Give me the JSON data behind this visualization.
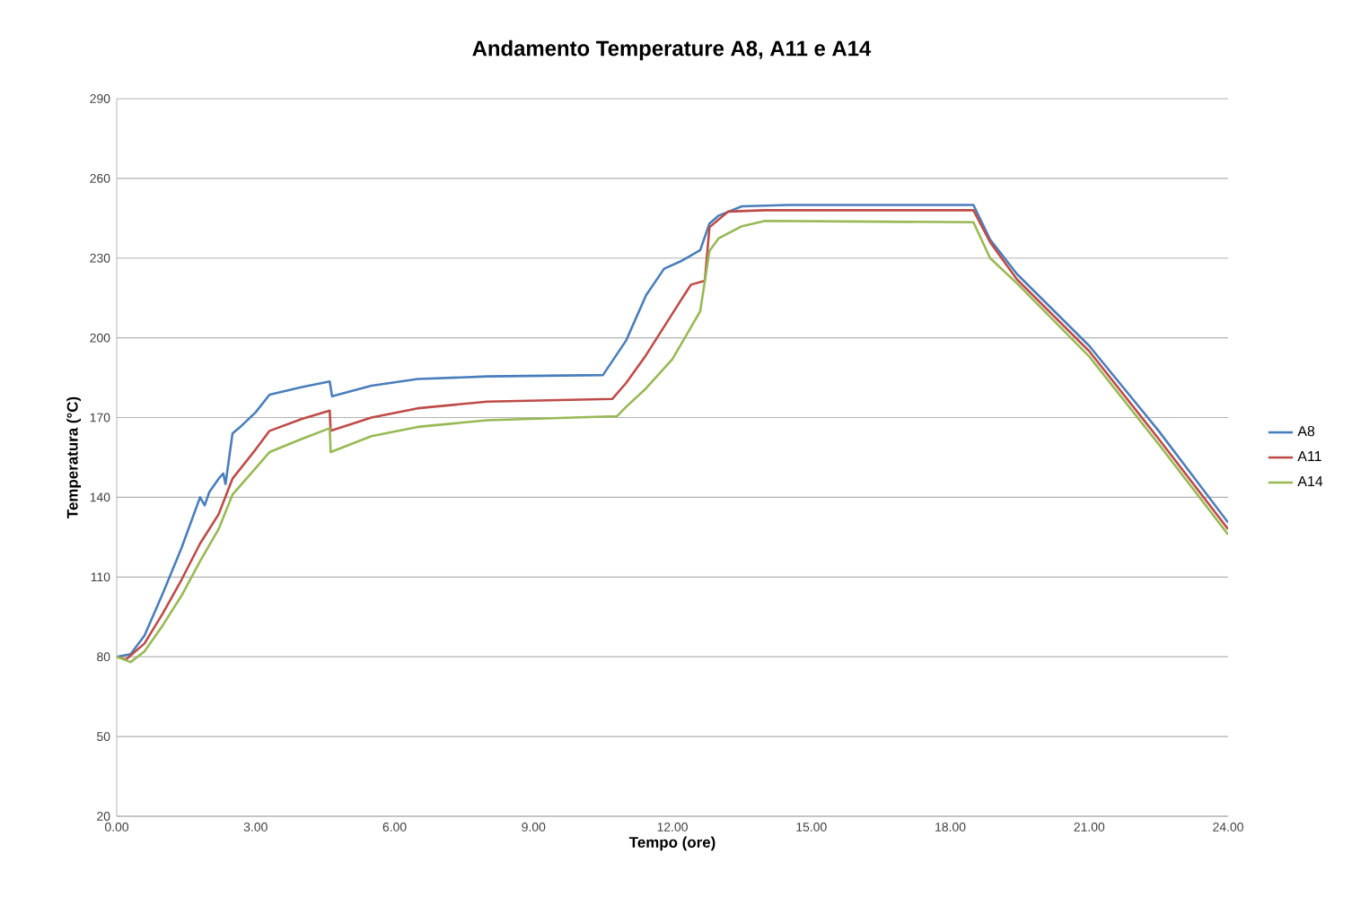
{
  "chart_data": {
    "type": "line",
    "title": "Andamento Temperature A8, A11 e A14",
    "xlabel": "Tempo (ore)",
    "ylabel": "Temperatura (°C)",
    "xlim": [
      0,
      24
    ],
    "ylim": [
      20,
      290
    ],
    "xticks": [
      {
        "value": 0,
        "label": "0.00"
      },
      {
        "value": 3,
        "label": "3.00"
      },
      {
        "value": 6,
        "label": "6.00"
      },
      {
        "value": 9,
        "label": "9.00"
      },
      {
        "value": 12,
        "label": "12.00"
      },
      {
        "value": 15,
        "label": "15.00"
      },
      {
        "value": 18,
        "label": "18.00"
      },
      {
        "value": 21,
        "label": "21.00"
      },
      {
        "value": 24,
        "label": "24.00"
      }
    ],
    "yticks": [
      20,
      50,
      80,
      110,
      140,
      170,
      200,
      230,
      260,
      290
    ],
    "grid": "y",
    "legend": "right",
    "marker": "none",
    "line_style": "solid",
    "series": [
      {
        "name": "A8",
        "color": "#4a7ebb",
        "x": [
          0,
          0.3,
          0.6,
          1.0,
          1.4,
          1.8,
          1.9,
          2.0,
          2.2,
          2.3,
          2.35,
          2.5,
          2.7,
          3.0,
          3.3,
          4.0,
          4.6,
          4.65,
          5.5,
          6.5,
          8.0,
          10.5,
          11.0,
          11.43,
          11.82,
          12.2,
          12.6,
          12.8,
          13.0,
          13.5,
          14.5,
          18.5,
          18.86,
          19.44,
          21.0,
          22.5,
          24.0
        ],
        "values": [
          80,
          81,
          88,
          104,
          121,
          140,
          137,
          142,
          147,
          149,
          145,
          164,
          167,
          172,
          178.6,
          181.5,
          183.6,
          178,
          182,
          184.5,
          185.5,
          186,
          199,
          216,
          226,
          229,
          233,
          243,
          246,
          249.5,
          250,
          250,
          237,
          224,
          197,
          165,
          130.5
        ]
      },
      {
        "name": "A11",
        "color": "#be4b48",
        "x": [
          0,
          0.2,
          0.6,
          1.0,
          1.4,
          1.8,
          2.2,
          2.5,
          3.0,
          3.3,
          4.0,
          4.6,
          4.62,
          5.5,
          6.5,
          8.0,
          10.7,
          11.0,
          11.43,
          12.2,
          12.4,
          12.7,
          12.8,
          13.2,
          14.0,
          18.5,
          18.86,
          19.44,
          21.0,
          22.5,
          24.0
        ],
        "values": [
          80,
          79,
          85,
          96.5,
          109,
          122.6,
          133.6,
          147,
          158,
          165,
          169.5,
          172.6,
          165,
          170,
          173.5,
          176,
          177,
          183,
          193.5,
          214.6,
          220,
          221.5,
          241.6,
          247.5,
          248,
          248,
          236,
          222,
          195,
          162,
          128
        ]
      },
      {
        "name": "A14",
        "color": "#98b954",
        "x": [
          0,
          0.3,
          0.6,
          1.0,
          1.4,
          1.8,
          2.2,
          2.5,
          3.0,
          3.3,
          4.0,
          4.6,
          4.62,
          5.5,
          6.5,
          8.0,
          10.8,
          11.0,
          11.43,
          12.0,
          12.6,
          12.8,
          13.0,
          13.5,
          14.0,
          18.5,
          18.86,
          19.44,
          21.0,
          22.5,
          24.0
        ],
        "values": [
          80,
          78,
          82,
          92,
          103,
          116,
          128,
          141,
          151,
          157,
          162,
          166,
          157,
          163,
          166.5,
          169,
          170.5,
          174,
          181,
          192,
          210,
          232.7,
          237.5,
          242,
          244,
          243.5,
          230,
          220.5,
          193,
          160,
          126
        ]
      }
    ]
  }
}
